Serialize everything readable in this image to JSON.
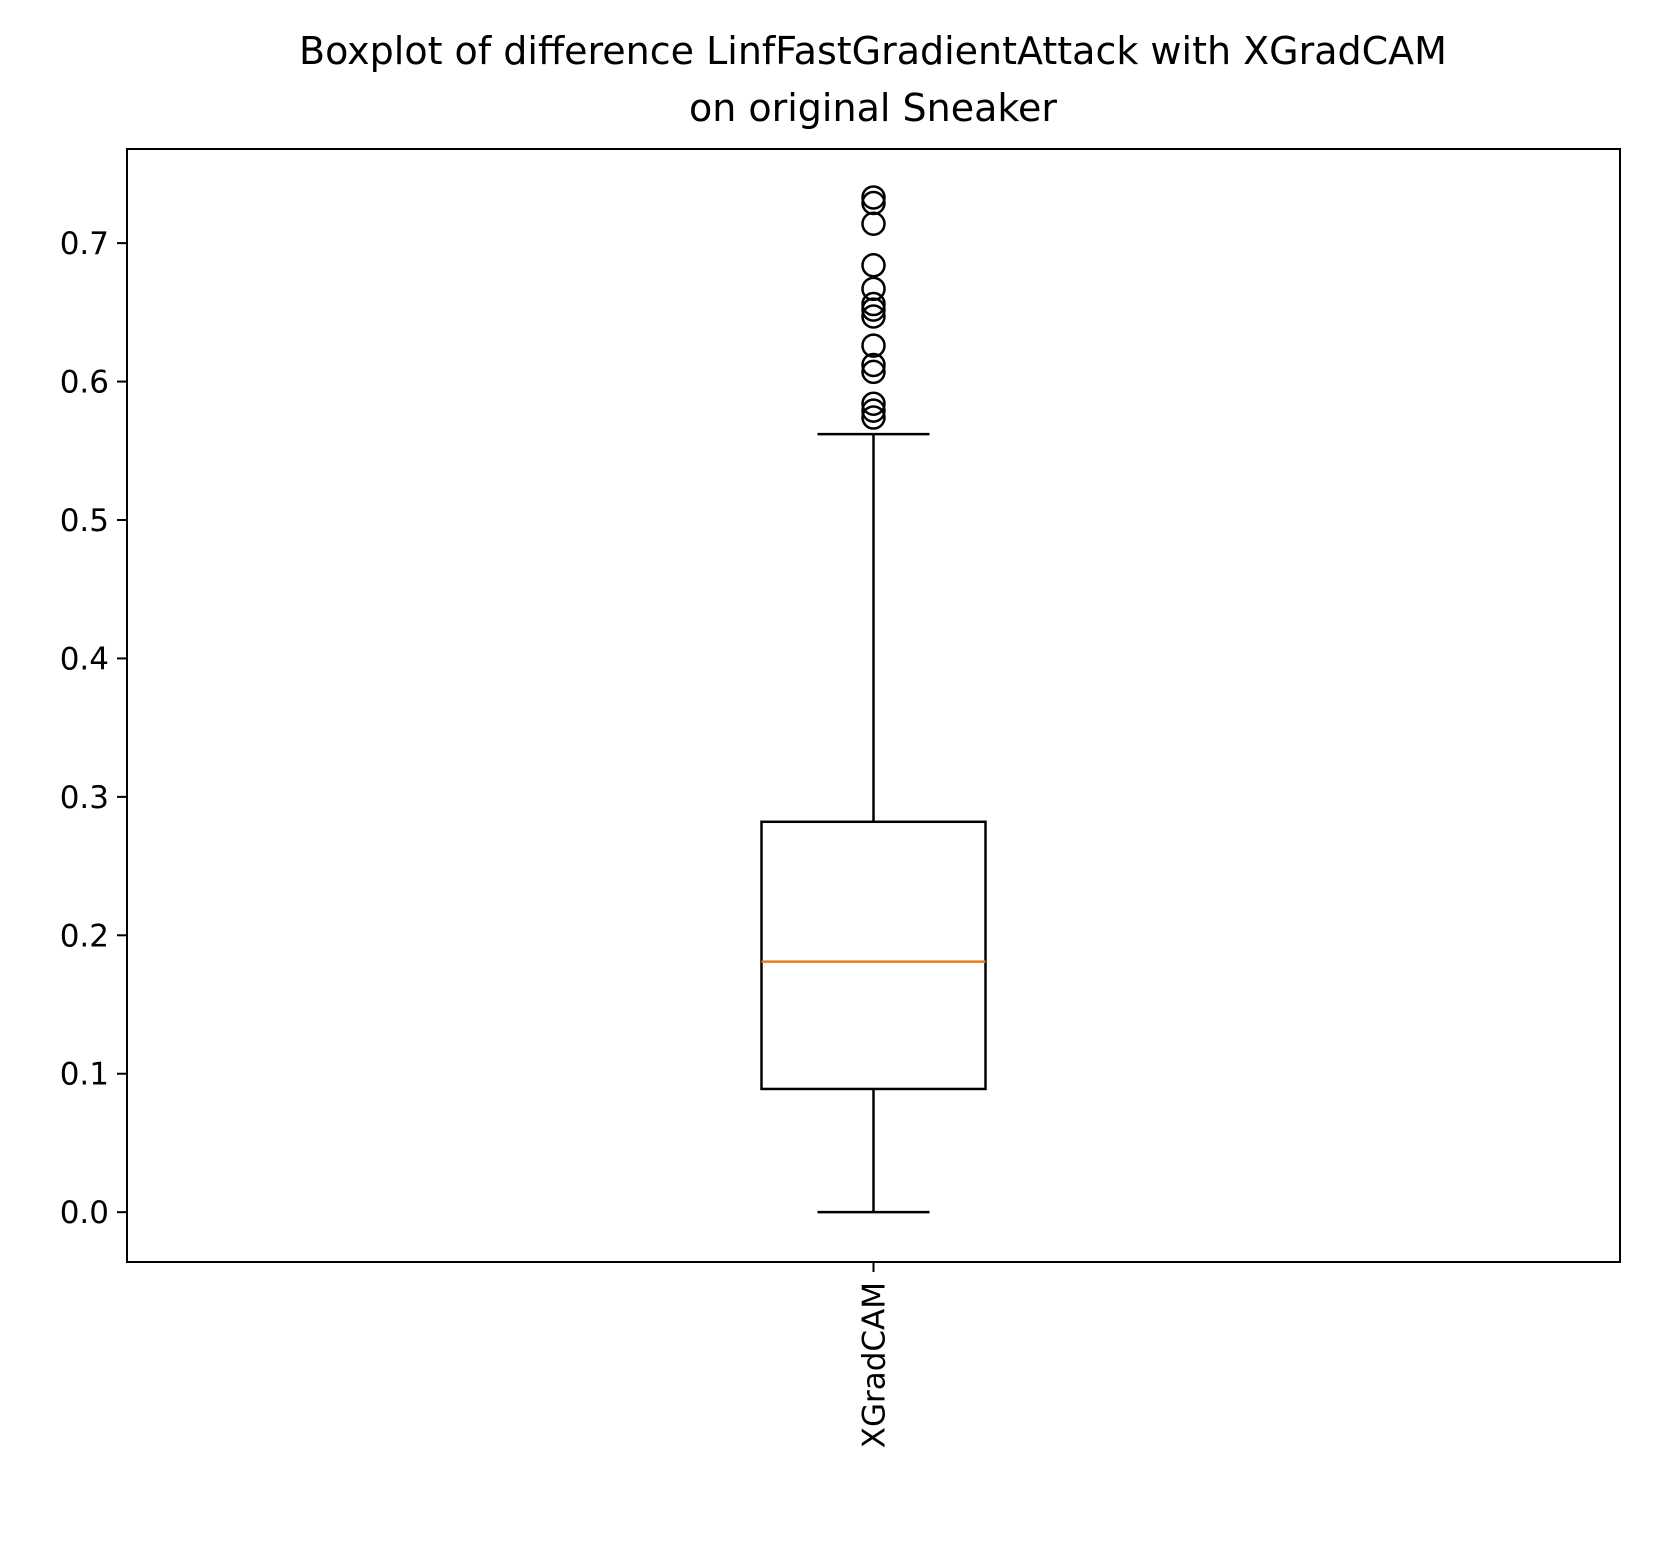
{
  "chart_data": {
    "type": "boxplot",
    "title_lines": [
      "Boxplot of difference LinfFastGradientAttack with XGradCAM",
      "on original Sneaker"
    ],
    "xlabel": "",
    "ylabel": "",
    "ylim": [
      -0.036,
      0.768
    ],
    "yticks": [
      0.0,
      0.1,
      0.2,
      0.3,
      0.4,
      0.5,
      0.6,
      0.7
    ],
    "ytick_labels": [
      "0.0",
      "0.1",
      "0.2",
      "0.3",
      "0.4",
      "0.5",
      "0.6",
      "0.7"
    ],
    "categories": [
      "XGradCAM"
    ],
    "grid": false,
    "boxes": [
      {
        "label": "XGradCAM",
        "whisker_low": 0.0,
        "q1": 0.089,
        "median": 0.181,
        "q3": 0.282,
        "whisker_high": 0.562,
        "outliers": [
          0.574,
          0.579,
          0.584,
          0.607,
          0.612,
          0.626,
          0.647,
          0.652,
          0.656,
          0.667,
          0.684,
          0.714,
          0.729,
          0.733
        ]
      }
    ],
    "colors": {
      "box": "#000000",
      "median": "#e87e1f",
      "whisker": "#000000",
      "outlier": "#000000",
      "axes": "#000000",
      "background": "#ffffff"
    }
  }
}
